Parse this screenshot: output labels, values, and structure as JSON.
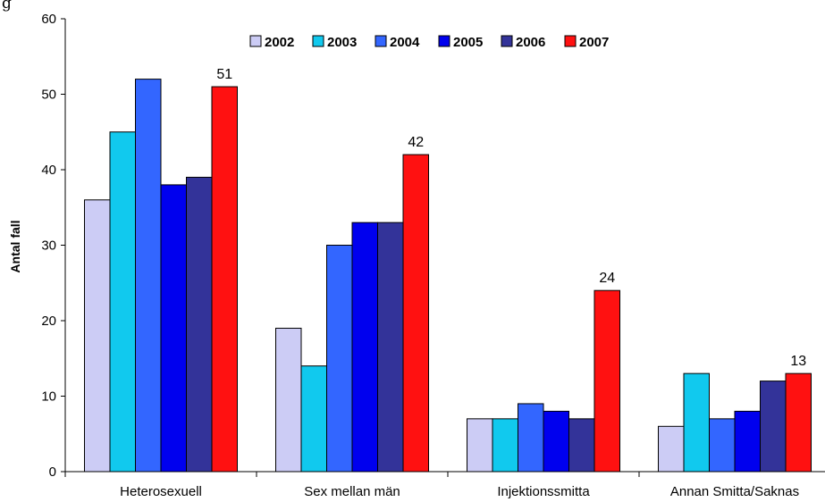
{
  "chart_data": {
    "type": "bar",
    "title": "",
    "title_fragment": "g",
    "xlabel": "",
    "ylabel": "Antal fall",
    "ylim": [
      0,
      60
    ],
    "yticks": [
      0,
      10,
      20,
      30,
      40,
      50,
      60
    ],
    "grid": false,
    "legend_position": "top",
    "categories": [
      "Heterosexuell",
      "Sex mellan män",
      "Injektionssmitta",
      "Annan Smitta/Saknas"
    ],
    "series": [
      {
        "name": "2002",
        "color": "#ccccf5",
        "values": [
          36,
          19,
          7,
          6
        ]
      },
      {
        "name": "2003",
        "color": "#11c9ee",
        "values": [
          45,
          14,
          7,
          13
        ]
      },
      {
        "name": "2004",
        "color": "#3366ff",
        "values": [
          52,
          30,
          9,
          7
        ]
      },
      {
        "name": "2005",
        "color": "#0000ee",
        "values": [
          38,
          33,
          8,
          8
        ]
      },
      {
        "name": "2006",
        "color": "#333399",
        "values": [
          39,
          33,
          7,
          12
        ]
      },
      {
        "name": "2007",
        "color": "#ff1111",
        "values": [
          51,
          42,
          24,
          13
        ]
      }
    ],
    "data_labels": {
      "series": "2007",
      "values": [
        "51",
        "42",
        "24",
        "13"
      ]
    }
  }
}
